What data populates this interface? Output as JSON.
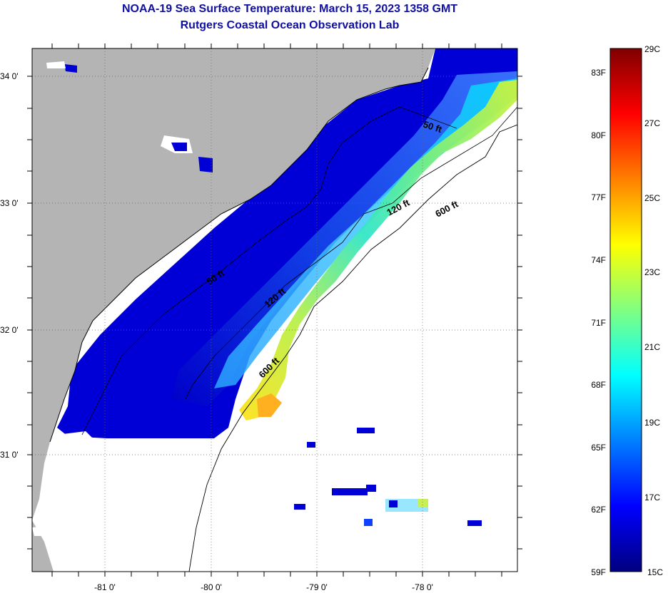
{
  "header": {
    "title_line1": "NOAA-19 Sea Surface Temperature:  March 15, 2023 1358 GMT",
    "title_line2": "Rutgers Coastal Ocean Observation Lab"
  },
  "map": {
    "lat_labels": [
      "34 0'",
      "33 0'",
      "32 0'",
      "31 0'"
    ],
    "lon_labels": [
      "-81 0'",
      "-80 0'",
      "-79 0'",
      "-78 0'"
    ],
    "isobath_labels": [
      {
        "text": "50 ft"
      },
      {
        "text": "120 ft"
      },
      {
        "text": "600 ft"
      },
      {
        "text": "50 ft"
      },
      {
        "text": "120 ft"
      },
      {
        "text": "600 ft"
      }
    ]
  },
  "colorbar": {
    "celsius_labels": [
      "29C",
      "27C",
      "25C",
      "23C",
      "21C",
      "19C",
      "17C",
      "15C"
    ],
    "fahrenheit_labels": [
      "83F",
      "80F",
      "77F",
      "74F",
      "71F",
      "68F",
      "65F",
      "62F",
      "59F"
    ],
    "colors": [
      "#00007f",
      "#0000ff",
      "#0080ff",
      "#00ffff",
      "#80ff80",
      "#ffff00",
      "#ff8000",
      "#ff0000",
      "#7f0000"
    ]
  }
}
